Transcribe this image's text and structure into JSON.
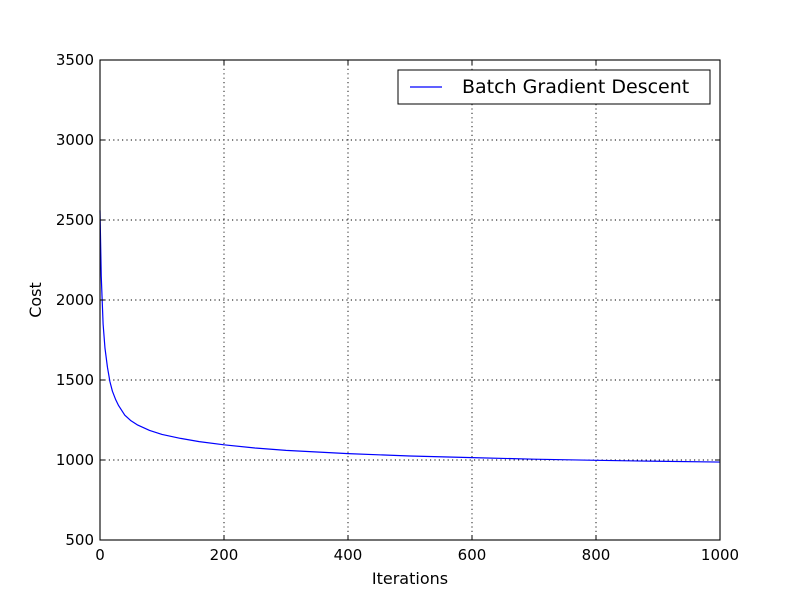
{
  "chart_data": {
    "type": "line",
    "title": "",
    "xlabel": "Iterations",
    "ylabel": "Cost",
    "xlim": [
      0,
      1000
    ],
    "ylim": [
      500,
      3500
    ],
    "xticks": [
      0,
      200,
      400,
      600,
      800,
      1000
    ],
    "yticks": [
      500,
      1000,
      1500,
      2000,
      2500,
      3000,
      3500
    ],
    "grid": true,
    "legend_position": "top-right",
    "series": [
      {
        "name": "Batch Gradient Descent",
        "color": "#0000ff",
        "x": [
          0,
          2,
          5,
          8,
          12,
          16,
          20,
          25,
          30,
          40,
          50,
          60,
          80,
          100,
          130,
          160,
          200,
          250,
          300,
          400,
          500,
          600,
          700,
          800,
          900,
          1000
        ],
        "y": [
          2560,
          2150,
          1850,
          1700,
          1580,
          1490,
          1430,
          1380,
          1340,
          1280,
          1245,
          1220,
          1185,
          1160,
          1135,
          1115,
          1095,
          1075,
          1060,
          1040,
          1025,
          1015,
          1005,
          998,
          992,
          987
        ]
      }
    ]
  }
}
